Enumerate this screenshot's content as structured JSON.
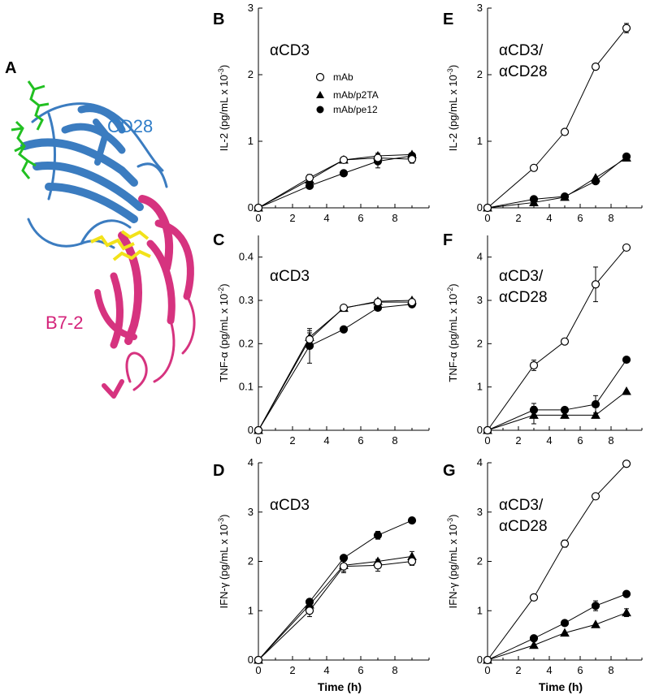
{
  "structure_panel": {
    "letter": "A",
    "labels": [
      {
        "text": "CD28",
        "color": "#2f7dc8"
      },
      {
        "text": "B7-2",
        "color": "#d4237a"
      }
    ],
    "colors": {
      "cd28": "#3b7cc0",
      "b72": "#d6337f",
      "green": "#22c022",
      "yellow": "#f2e21a"
    }
  },
  "legend": [
    "mAb",
    "mAb/p2TA",
    "mAb/pe12"
  ],
  "chart_data": [
    {
      "panel": "B",
      "type": "line",
      "condition": "αCD3",
      "ylabel": "IL-2 (pg/mL x 10-3)",
      "xlabel": "",
      "x": [
        0,
        3,
        5,
        7,
        9
      ],
      "xlim": [
        0,
        10
      ],
      "ylim": [
        0,
        3
      ],
      "yticks": [
        0,
        1,
        2,
        3
      ],
      "series": [
        {
          "name": "mAb",
          "marker": "open-circle",
          "values": [
            0,
            0.45,
            0.72,
            0.75,
            0.73
          ],
          "err": [
            0,
            0.05,
            0.04,
            0.05,
            0.06
          ]
        },
        {
          "name": "mAb/p2TA",
          "marker": "triangle",
          "values": [
            0,
            0.42,
            0.72,
            0.78,
            0.8
          ],
          "err": [
            0,
            0,
            0,
            0.04,
            0
          ]
        },
        {
          "name": "mAb/pe12",
          "marker": "filled-circle",
          "values": [
            0,
            0.33,
            0.52,
            0.7,
            0.78
          ],
          "err": [
            0,
            0,
            0,
            0.1,
            0.04
          ]
        }
      ]
    },
    {
      "panel": "C",
      "type": "line",
      "condition": "αCD3",
      "ylabel": "TNF-α (pg/mL x 10-2)",
      "xlabel": "",
      "x": [
        0,
        3,
        5,
        7,
        9
      ],
      "xlim": [
        0,
        10
      ],
      "ylim": [
        0,
        0.45
      ],
      "yticks": [
        0,
        0.1,
        0.2,
        0.3,
        0.4
      ],
      "series": [
        {
          "name": "mAb",
          "marker": "open-circle",
          "values": [
            0,
            0.21,
            0.283,
            0.296,
            0.296
          ],
          "err": [
            0,
            0.02,
            0.006,
            0.006,
            0.006
          ]
        },
        {
          "name": "mAb/p2TA",
          "marker": "triangle",
          "values": [
            0,
            0.215,
            0.282,
            0.298,
            0.3
          ],
          "err": [
            0,
            0.01,
            0,
            0,
            0
          ]
        },
        {
          "name": "mAb/pe12",
          "marker": "filled-circle",
          "values": [
            0,
            0.195,
            0.233,
            0.283,
            0.291
          ],
          "err": [
            0,
            0.04,
            0,
            0,
            0.006
          ]
        }
      ]
    },
    {
      "panel": "D",
      "type": "line",
      "condition": "αCD3",
      "ylabel": "IFN-γ (pg/mL x 10-3)",
      "xlabel": "Time (h)",
      "x": [
        0,
        3,
        5,
        7,
        9
      ],
      "xlim": [
        0,
        10
      ],
      "ylim": [
        0,
        4
      ],
      "yticks": [
        0,
        1,
        2,
        3,
        4
      ],
      "series": [
        {
          "name": "mAb",
          "marker": "open-circle",
          "values": [
            0,
            1.0,
            1.9,
            1.92,
            2.0
          ],
          "err": [
            0,
            0.12,
            0.1,
            0.12,
            0.08
          ]
        },
        {
          "name": "mAb/p2TA",
          "marker": "triangle",
          "values": [
            0,
            1.12,
            1.92,
            2.0,
            2.1
          ],
          "err": [
            0,
            0,
            0.15,
            0,
            0.1
          ]
        },
        {
          "name": "mAb/pe12",
          "marker": "filled-circle",
          "values": [
            0,
            1.18,
            2.07,
            2.53,
            2.83
          ],
          "err": [
            0,
            0,
            0,
            0.08,
            0
          ]
        }
      ]
    },
    {
      "panel": "E",
      "type": "line",
      "condition": "αCD3/ αCD28",
      "ylabel": "IL-2 (pg/mL x 10-3)",
      "xlabel": "",
      "x": [
        0,
        3,
        5,
        7,
        9
      ],
      "xlim": [
        0,
        10
      ],
      "ylim": [
        0,
        3
      ],
      "yticks": [
        0,
        1,
        2,
        3
      ],
      "series": [
        {
          "name": "mAb",
          "marker": "open-circle",
          "values": [
            0,
            0.6,
            1.14,
            2.12,
            2.7
          ],
          "err": [
            0,
            0,
            0,
            0,
            0.07
          ]
        },
        {
          "name": "mAb/p2TA",
          "marker": "triangle",
          "values": [
            0,
            0.08,
            0.16,
            0.45,
            0.75
          ],
          "err": [
            0,
            0,
            0,
            0,
            0
          ]
        },
        {
          "name": "mAb/pe12",
          "marker": "filled-circle",
          "values": [
            0,
            0.13,
            0.17,
            0.4,
            0.77
          ],
          "err": [
            0,
            0,
            0,
            0,
            0
          ]
        }
      ]
    },
    {
      "panel": "F",
      "type": "line",
      "condition": "αCD3/ αCD28",
      "ylabel": "TNF-α (pg/mL x 10-2)",
      "xlabel": "",
      "x": [
        0,
        3,
        5,
        7,
        9
      ],
      "xlim": [
        0,
        10
      ],
      "ylim": [
        0,
        4.5
      ],
      "yticks": [
        0,
        1,
        2,
        3,
        4
      ],
      "series": [
        {
          "name": "mAb",
          "marker": "open-circle",
          "values": [
            0,
            1.5,
            2.05,
            3.37,
            4.22
          ],
          "err": [
            0,
            0.12,
            0,
            0.4,
            0
          ]
        },
        {
          "name": "mAb/p2TA",
          "marker": "triangle",
          "values": [
            0,
            0.35,
            0.35,
            0.35,
            0.9
          ],
          "err": [
            0,
            0.2,
            0,
            0,
            0
          ]
        },
        {
          "name": "mAb/pe12",
          "marker": "filled-circle",
          "values": [
            0,
            0.47,
            0.47,
            0.6,
            1.63
          ],
          "err": [
            0,
            0.15,
            0,
            0.2,
            0
          ]
        }
      ]
    },
    {
      "panel": "G",
      "type": "line",
      "condition": "αCD3/ αCD28",
      "ylabel": "IFN-γ (pg/mL x 10-3)",
      "xlabel": "Time (h)",
      "x": [
        0,
        3,
        5,
        7,
        9
      ],
      "xlim": [
        0,
        10
      ],
      "ylim": [
        0,
        4
      ],
      "yticks": [
        0,
        1,
        2,
        3,
        4
      ],
      "series": [
        {
          "name": "mAb",
          "marker": "open-circle",
          "values": [
            0,
            1.27,
            2.36,
            3.32,
            3.98
          ],
          "err": [
            0,
            0,
            0.07,
            0.05,
            0.06
          ]
        },
        {
          "name": "mAb/p2TA",
          "marker": "triangle",
          "values": [
            0,
            0.3,
            0.55,
            0.72,
            0.96
          ],
          "err": [
            0,
            0,
            0,
            0,
            0.08
          ]
        },
        {
          "name": "mAb/pe12",
          "marker": "filled-circle",
          "values": [
            0,
            0.44,
            0.75,
            1.1,
            1.34
          ],
          "err": [
            0,
            0,
            0,
            0.1,
            0
          ]
        }
      ]
    }
  ]
}
